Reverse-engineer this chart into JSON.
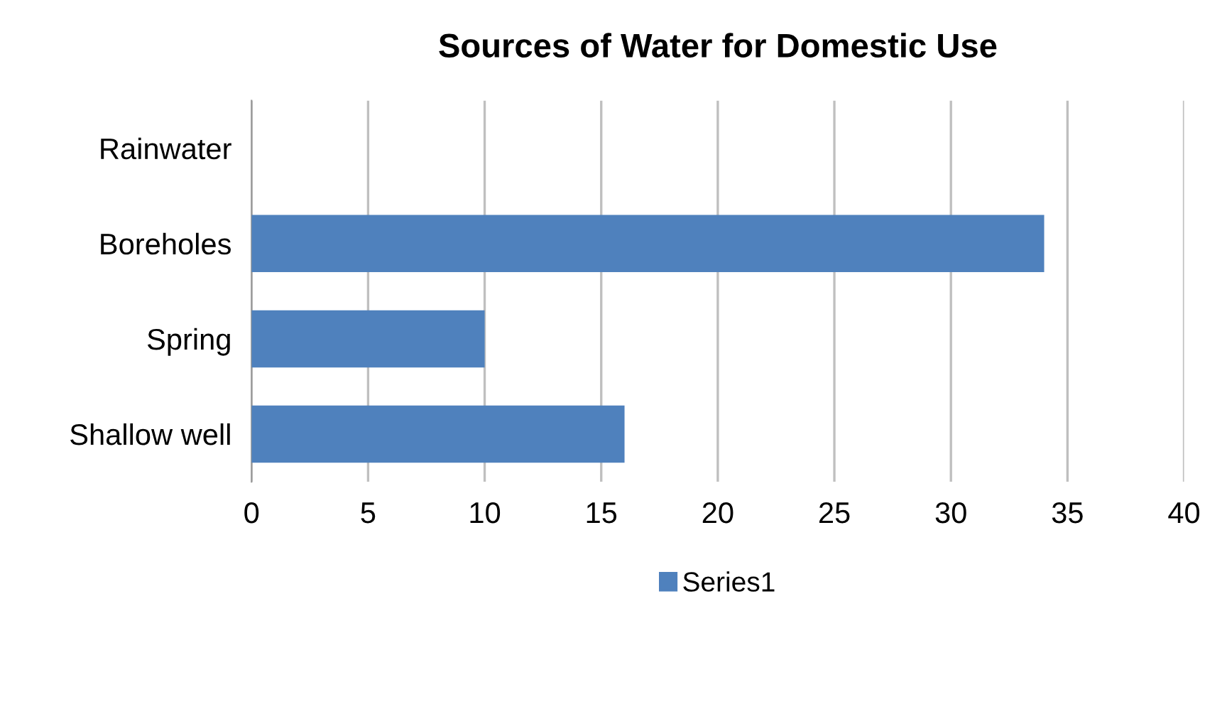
{
  "chart_data": {
    "type": "bar",
    "orientation": "horizontal",
    "title": "Sources of Water for Domestic Use",
    "categories": [
      "Rainwater",
      "Boreholes",
      "Spring",
      "Shallow well"
    ],
    "series": [
      {
        "name": "Series1",
        "color": "#4f81bd",
        "values": [
          0,
          34,
          10,
          16
        ]
      }
    ],
    "xlim": [
      0,
      40
    ],
    "xticks": [
      0,
      5,
      10,
      15,
      20,
      25,
      30,
      35,
      40
    ],
    "grid": "x",
    "legend": "bottom"
  }
}
